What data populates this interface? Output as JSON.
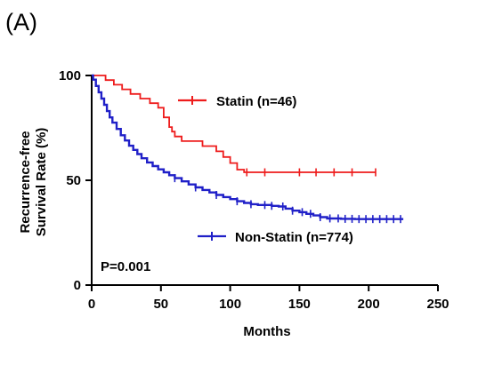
{
  "panel_label": "(A)",
  "annotation": "P=0.001",
  "chart_data": {
    "type": "line",
    "step": true,
    "xlabel": "Months",
    "ylabel_lines": [
      "Recurrence-free",
      "Survival Rate (%)"
    ],
    "xlim": [
      0,
      250
    ],
    "ylim": [
      0,
      100
    ],
    "xticks": [
      0,
      50,
      100,
      150,
      200,
      250
    ],
    "yticks": [
      0,
      50,
      100
    ],
    "grid": false,
    "legend_placement": "inline-right",
    "series": [
      {
        "name": "Statin (n=46)",
        "color": "#ee1c1c",
        "x": [
          0,
          5,
          10,
          16,
          22,
          28,
          35,
          42,
          48,
          52,
          56,
          58,
          60,
          62,
          65,
          70,
          80,
          85,
          90,
          95,
          100,
          105,
          110,
          205
        ],
        "y": [
          100,
          100,
          97.8,
          95.6,
          93.4,
          91.2,
          89,
          86.8,
          84.6,
          80,
          75.4,
          73.2,
          70.9,
          70.9,
          68.7,
          68.7,
          66.3,
          66.3,
          63.8,
          61.1,
          58.2,
          55.1,
          53.8,
          53.8
        ],
        "censor_x": [
          112,
          125,
          150,
          162,
          175,
          188,
          205
        ]
      },
      {
        "name": "Non-Stat in (n=774)",
        "color": "#2020c8",
        "x": [
          0,
          1,
          3,
          5,
          7,
          9,
          11,
          13,
          15,
          18,
          21,
          24,
          27,
          30,
          33,
          36,
          40,
          44,
          48,
          52,
          56,
          60,
          65,
          70,
          75,
          80,
          85,
          90,
          95,
          100,
          105,
          110,
          115,
          120,
          130,
          135,
          140,
          145,
          150,
          155,
          160,
          165,
          170,
          180,
          190,
          200,
          210,
          225
        ],
        "y": [
          100,
          98,
          95,
          92,
          89,
          86,
          83,
          80,
          77.5,
          74.5,
          71.5,
          69,
          66.5,
          64.5,
          62.5,
          60.5,
          58.5,
          56.8,
          55.2,
          53.8,
          52.4,
          51,
          49.5,
          48,
          46.6,
          45.4,
          44.2,
          43,
          42,
          41,
          40,
          39.2,
          38.6,
          38.2,
          37.8,
          37.5,
          36.5,
          35.5,
          34.8,
          34,
          33.2,
          32.4,
          31.8,
          31.6,
          31.5,
          31.5,
          31.5,
          31.5
        ],
        "censor_x": [
          60,
          75,
          90,
          105,
          115,
          125,
          130,
          138,
          145,
          152,
          158,
          165,
          172,
          178,
          183,
          188,
          193,
          198,
          203,
          208,
          213,
          218,
          223
        ]
      }
    ]
  }
}
